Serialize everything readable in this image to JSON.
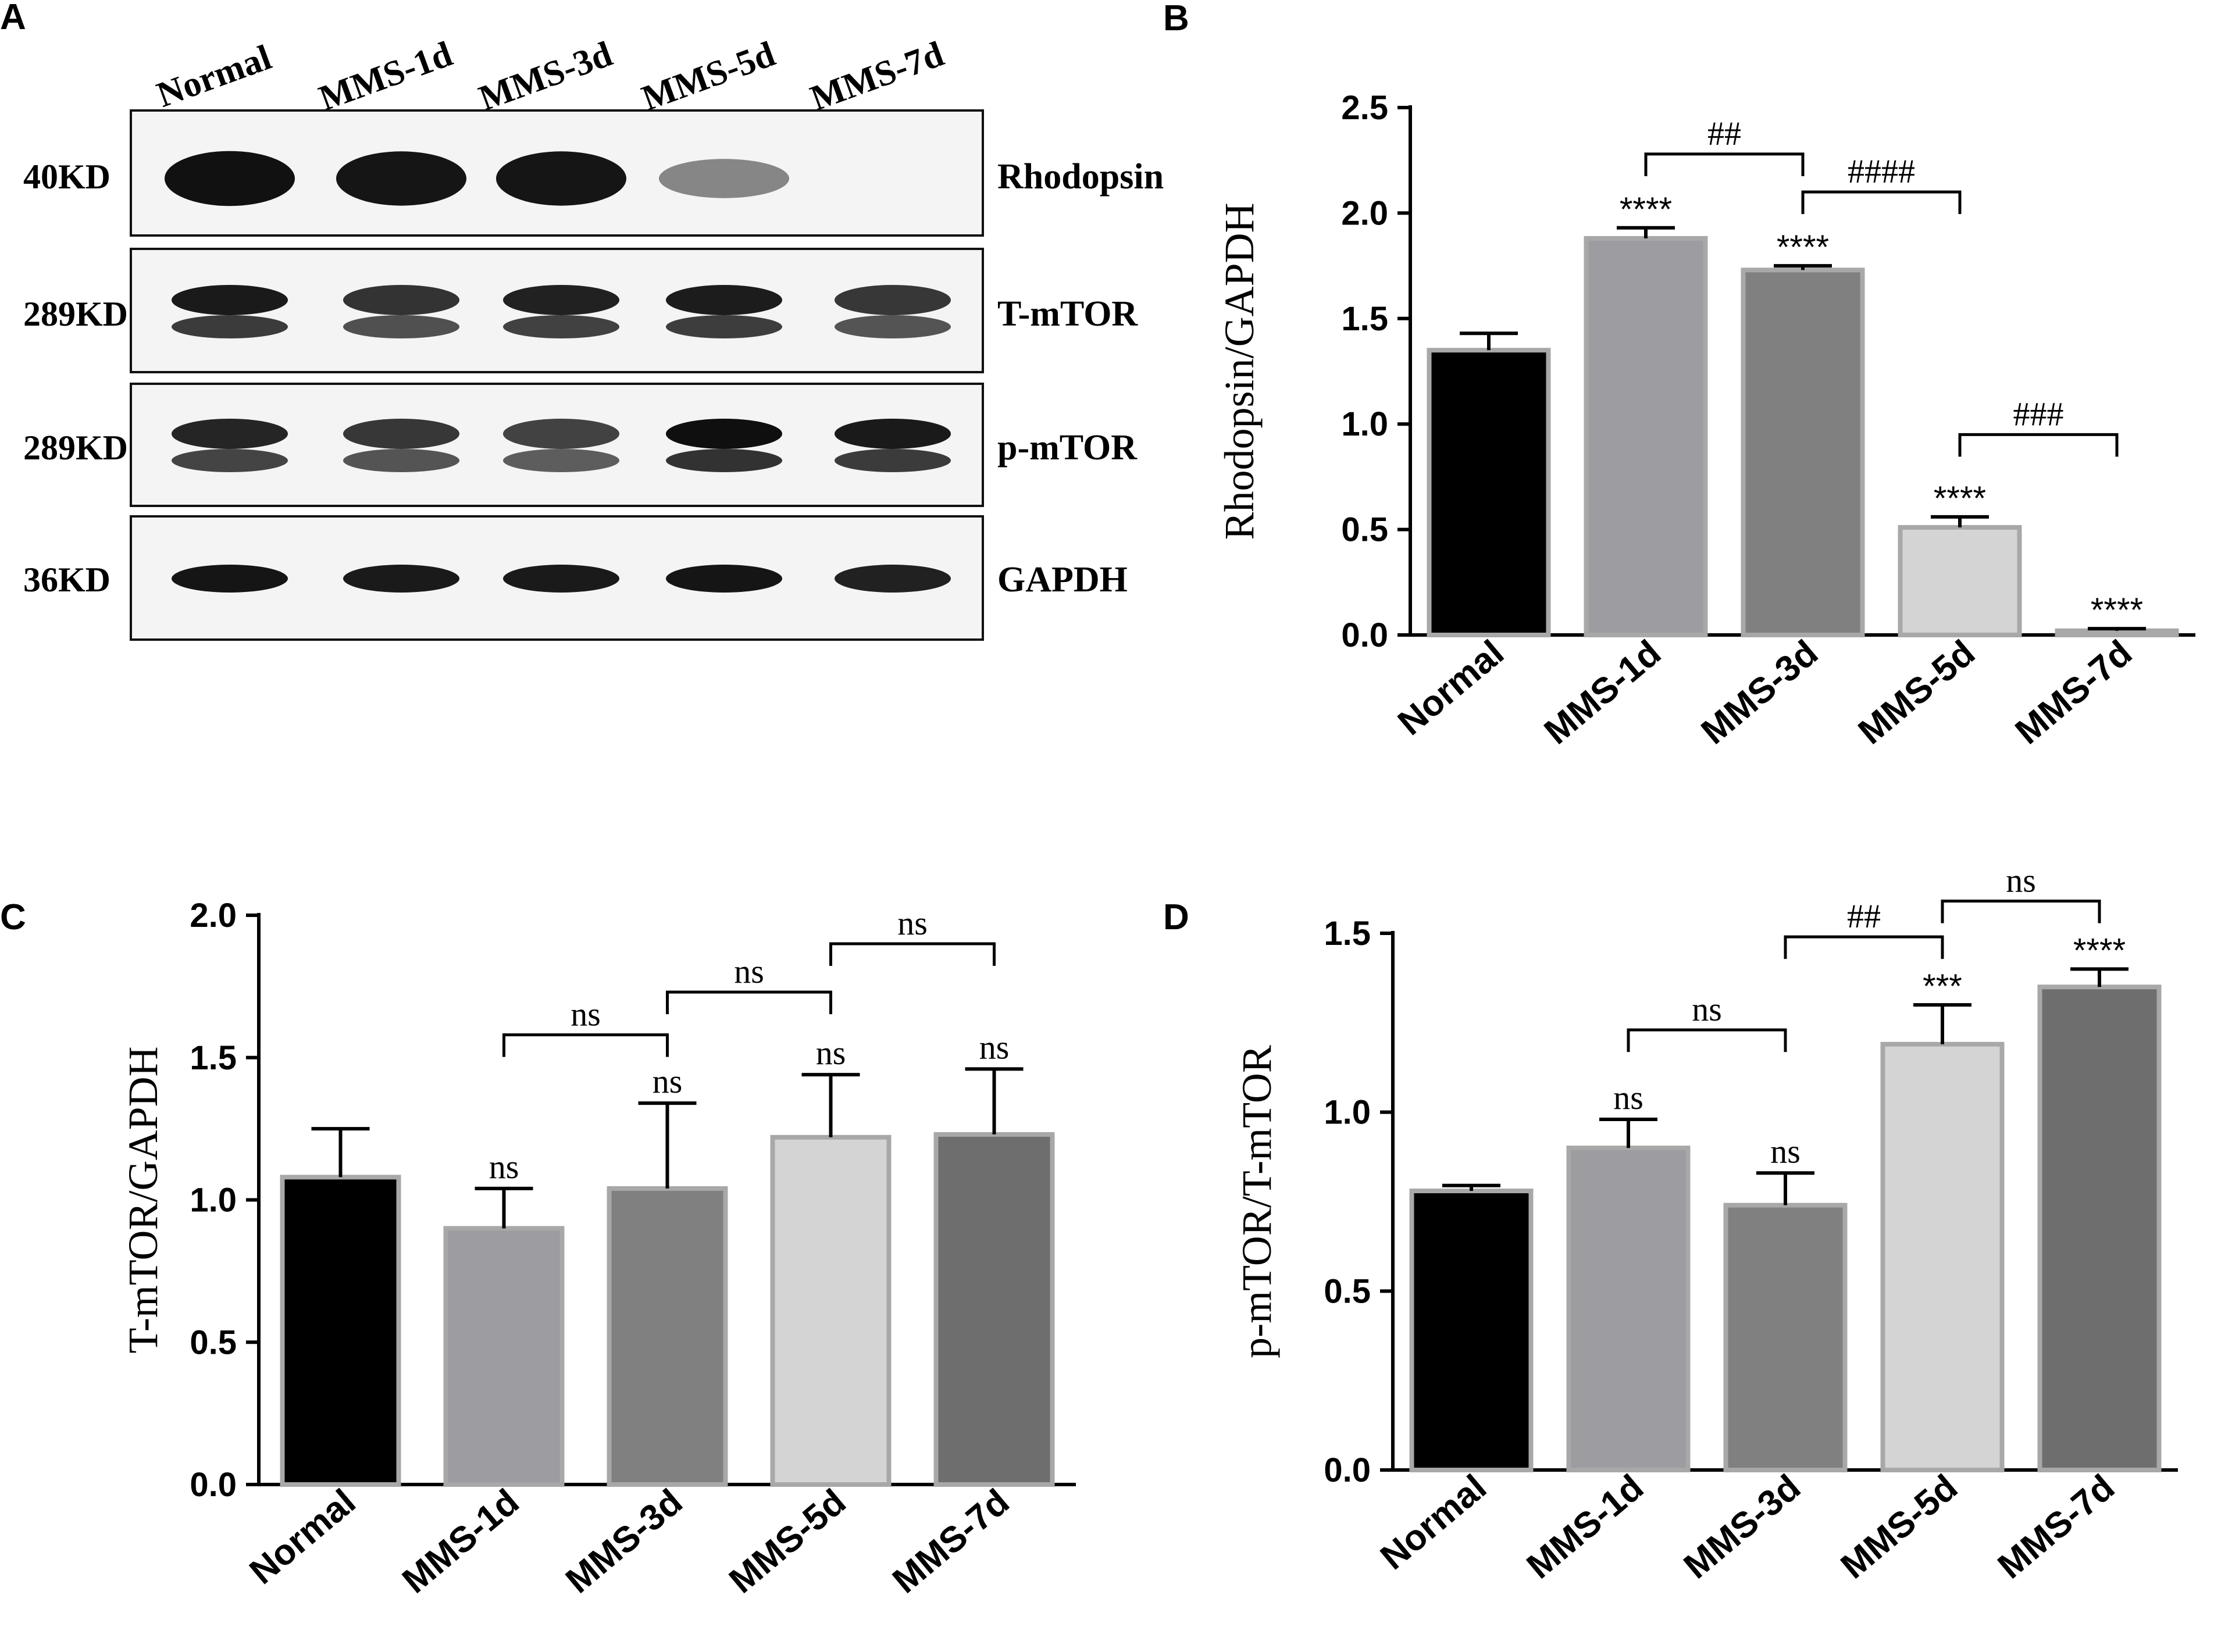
{
  "panels": {
    "A": {
      "letter": "A",
      "lane_labels": [
        "Normal",
        "MMS-1d",
        "MMS-3d",
        "MMS-5d",
        "MMS-7d"
      ],
      "blots": [
        {
          "protein": "Rhodopsin",
          "size": "40KD",
          "intensity": [
            0.97,
            0.95,
            0.95,
            0.45,
            0.0
          ]
        },
        {
          "protein": "T-mTOR",
          "size": "289KD",
          "intensity": [
            0.93,
            0.82,
            0.9,
            0.92,
            0.8
          ]
        },
        {
          "protein": "p-mTOR",
          "size": "289KD",
          "intensity": [
            0.88,
            0.8,
            0.75,
            0.98,
            0.93
          ]
        },
        {
          "protein": "GAPDH",
          "size": "36KD",
          "intensity": [
            0.95,
            0.93,
            0.93,
            0.95,
            0.9
          ]
        }
      ]
    }
  },
  "chart_data": [
    {
      "panel": "B",
      "type": "bar",
      "categories": [
        "Normal",
        "MMS-1d",
        "MMS-3d",
        "MMS-5d",
        "MMS-7d"
      ],
      "values": [
        1.35,
        1.88,
        1.73,
        0.51,
        0.02
      ],
      "errors": [
        0.08,
        0.05,
        0.02,
        0.05,
        0.01
      ],
      "colors": [
        "#000000",
        "#9c9ca1",
        "#808080",
        "#d4d4d4",
        "#6e6e6e"
      ],
      "ylabel": "Rhodopsin/GAPDH",
      "ylim": [
        0,
        2.5
      ],
      "yticks": [
        "0.0",
        "0.5",
        "1.0",
        "1.5",
        "2.0",
        "2.5"
      ],
      "bar_labels": [
        "",
        "****",
        "****",
        "****",
        "****"
      ],
      "brackets": [
        {
          "from": 1,
          "to": 2,
          "label": "##",
          "level": 2.28
        },
        {
          "from": 2,
          "to": 3,
          "label": "####",
          "level": 2.1
        },
        {
          "from": 3,
          "to": 4,
          "label": "###",
          "level": 0.95
        }
      ]
    },
    {
      "panel": "C",
      "type": "bar",
      "categories": [
        "Normal",
        "MMS-1d",
        "MMS-3d",
        "MMS-5d",
        "MMS-7d"
      ],
      "values": [
        1.08,
        0.9,
        1.04,
        1.22,
        1.23
      ],
      "errors": [
        0.17,
        0.14,
        0.3,
        0.22,
        0.23
      ],
      "colors": [
        "#000000",
        "#9c9ca1",
        "#808080",
        "#d4d4d4",
        "#6e6e6e"
      ],
      "ylabel": "T-mTOR/GAPDH",
      "ylim": [
        0,
        2.0
      ],
      "yticks": [
        "0.0",
        "0.5",
        "1.0",
        "1.5",
        "2.0"
      ],
      "bar_labels": [
        "",
        "ns",
        "ns",
        "ns",
        "ns"
      ],
      "brackets": [
        {
          "from": 1,
          "to": 2,
          "label": "ns",
          "level": 1.58
        },
        {
          "from": 2,
          "to": 3,
          "label": "ns",
          "level": 1.73
        },
        {
          "from": 3,
          "to": 4,
          "label": "ns",
          "level": 1.9
        }
      ]
    },
    {
      "panel": "D",
      "type": "bar",
      "categories": [
        "Normal",
        "MMS-1d",
        "MMS-3d",
        "MMS-5d",
        "MMS-7d"
      ],
      "values": [
        0.78,
        0.9,
        0.74,
        1.19,
        1.35
      ],
      "errors": [
        0.015,
        0.08,
        0.09,
        0.11,
        0.05
      ],
      "colors": [
        "#000000",
        "#9c9ca1",
        "#808080",
        "#d4d4d4",
        "#6e6e6e"
      ],
      "ylabel": "p-mTOR/T-mTOR",
      "ylim": [
        0,
        1.5
      ],
      "yticks": [
        "0.0",
        "0.5",
        "1.0",
        "1.5"
      ],
      "bar_labels": [
        "",
        "ns",
        "ns",
        "***",
        "****"
      ],
      "brackets": [
        {
          "from": 1,
          "to": 2,
          "label": "ns",
          "level": 1.23
        },
        {
          "from": 2,
          "to": 3,
          "label": "##",
          "level": 1.49
        },
        {
          "from": 3,
          "to": 4,
          "label": "ns",
          "level": 1.59
        }
      ]
    }
  ]
}
